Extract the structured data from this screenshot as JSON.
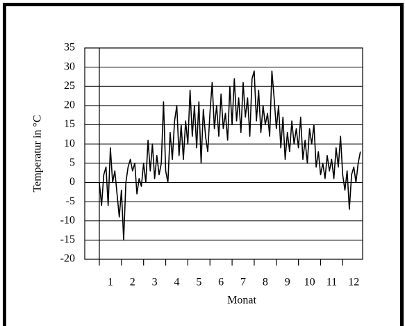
{
  "chart_data": {
    "type": "line",
    "xlabel": "Monat",
    "ylabel": "Temperatur in °C",
    "xlim": [
      0,
      11.9
    ],
    "ylim": [
      -20,
      35
    ],
    "yticks": [
      -20,
      -15,
      -10,
      -5,
      0,
      5,
      10,
      15,
      20,
      25,
      30,
      35
    ],
    "xticks": [
      {
        "value": 0.5,
        "label": "1"
      },
      {
        "value": 1.5,
        "label": "2"
      },
      {
        "value": 2.5,
        "label": "3"
      },
      {
        "value": 3.5,
        "label": "4"
      },
      {
        "value": 4.5,
        "label": "5"
      },
      {
        "value": 5.5,
        "label": "6"
      },
      {
        "value": 6.5,
        "label": "7"
      },
      {
        "value": 7.5,
        "label": "8"
      },
      {
        "value": 8.5,
        "label": "9"
      },
      {
        "value": 9.5,
        "label": "10"
      },
      {
        "value": 10.5,
        "label": "11"
      },
      {
        "value": 11.5,
        "label": "12"
      }
    ],
    "xminorticks": [
      0,
      1,
      2,
      3,
      4,
      5,
      6,
      7,
      8,
      9,
      10,
      11
    ],
    "grid": true,
    "series": [
      {
        "color": "#000000",
        "x": [
          0.0,
          0.1,
          0.2,
          0.3,
          0.4,
          0.5,
          0.6,
          0.7,
          0.8,
          0.9,
          1.0,
          1.1,
          1.2,
          1.3,
          1.4,
          1.5,
          1.6,
          1.7,
          1.8,
          1.9,
          2.0,
          2.1,
          2.2,
          2.3,
          2.4,
          2.5,
          2.6,
          2.7,
          2.8,
          2.9,
          3.0,
          3.1,
          3.2,
          3.3,
          3.4,
          3.5,
          3.6,
          3.7,
          3.8,
          3.9,
          4.0,
          4.1,
          4.2,
          4.3,
          4.4,
          4.5,
          4.6,
          4.7,
          4.8,
          4.9,
          5.0,
          5.1,
          5.2,
          5.3,
          5.4,
          5.5,
          5.6,
          5.7,
          5.8,
          5.9,
          6.0,
          6.1,
          6.2,
          6.3,
          6.4,
          6.5,
          6.6,
          6.7,
          6.8,
          6.9,
          7.0,
          7.1,
          7.2,
          7.3,
          7.4,
          7.5,
          7.6,
          7.7,
          7.8,
          7.9,
          8.0,
          8.1,
          8.2,
          8.3,
          8.4,
          8.5,
          8.6,
          8.7,
          8.8,
          8.9,
          9.0,
          9.1,
          9.2,
          9.3,
          9.4,
          9.5,
          9.6,
          9.7,
          9.8,
          9.9,
          10.0,
          10.1,
          10.2,
          10.3,
          10.4,
          10.5,
          10.6,
          10.7,
          10.8,
          10.9,
          11.0,
          11.1,
          11.2,
          11.3,
          11.4,
          11.5,
          11.6,
          11.7,
          11.8
        ],
        "values": [
          0,
          -6,
          2,
          4,
          -6,
          9,
          0,
          3,
          -3,
          -9,
          -2,
          -15,
          0,
          4,
          6,
          3,
          5,
          -3,
          1,
          -1,
          5,
          0,
          11,
          3,
          10,
          1,
          7,
          2,
          5,
          21,
          3,
          0,
          13,
          6,
          16,
          20,
          7,
          15,
          6,
          16,
          10,
          24,
          12,
          20,
          9,
          21,
          5,
          19,
          12,
          8,
          18,
          26,
          14,
          20,
          12,
          23,
          14,
          18,
          11,
          25,
          15,
          27,
          16,
          22,
          13,
          26,
          17,
          22,
          12,
          27,
          29,
          16,
          24,
          13,
          20,
          15,
          18,
          12,
          29,
          22,
          14,
          20,
          9,
          17,
          6,
          13,
          8,
          16,
          10,
          14,
          9,
          17,
          6,
          11,
          5,
          14,
          10,
          15,
          4,
          8,
          2,
          5,
          1,
          7,
          3,
          6,
          1,
          9,
          4,
          12,
          2,
          -2,
          3,
          -7,
          2,
          4,
          0,
          5,
          8
        ]
      }
    ]
  }
}
